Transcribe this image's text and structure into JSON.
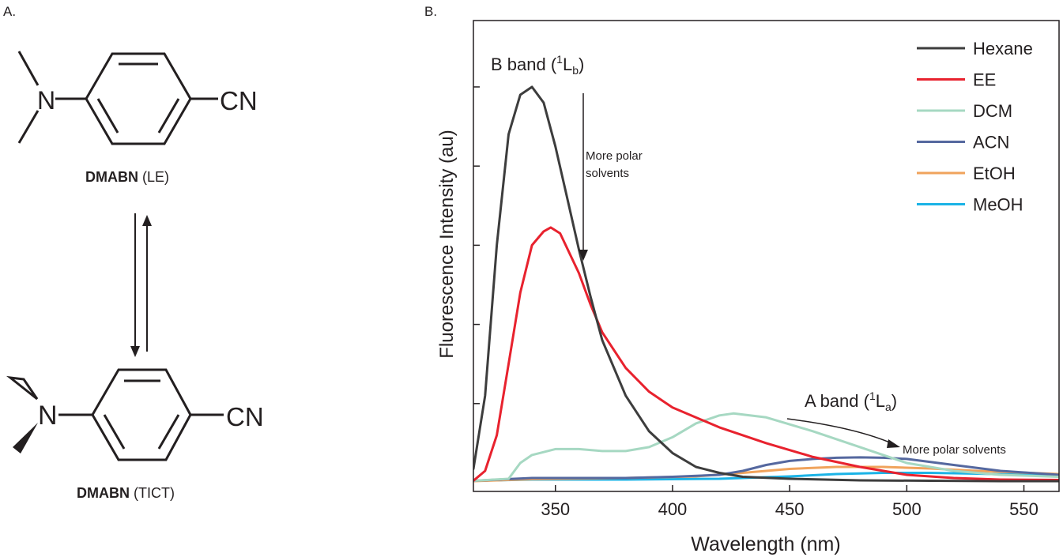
{
  "panel_a": {
    "label": "A.",
    "top_molecule": {
      "substituent": "N",
      "group": "CN",
      "name_bold": "DMABN",
      "name_suffix": " (LE)"
    },
    "bottom_molecule": {
      "substituent": "N",
      "group": "CN",
      "name_bold": "DMABN",
      "name_suffix": " (TICT)"
    }
  },
  "panel_b": {
    "label": "B.",
    "annotations": {
      "b_band_prefix": "B band (",
      "b_band_sup": "1",
      "b_band_main": "L",
      "b_band_sub": "b",
      "b_band_close": ")",
      "a_band_prefix": "A band (",
      "a_band_sup": "1",
      "a_band_main": "L",
      "a_band_sub": "a",
      "a_band_close": ")",
      "polar_line1": "More polar",
      "polar_line2": "solvents",
      "polar_a": "More polar solvents"
    }
  },
  "chart_data": {
    "type": "line",
    "title": "",
    "xlabel": "Wavelength (nm)",
    "ylabel": "Fluorescence Intensity (au)",
    "xlim": [
      315,
      565
    ],
    "ylim": [
      0,
      100
    ],
    "xticks": [
      350,
      400,
      450,
      500,
      550
    ],
    "xtick_labels": [
      "350",
      "400",
      "450",
      "500",
      "550"
    ],
    "yticks_unlabeled": [
      20,
      40,
      60,
      80,
      100
    ],
    "legend_position": "top-right",
    "series": [
      {
        "name": "Hexane",
        "color": "#3d3d3d",
        "x": [
          315,
          320,
          325,
          330,
          335,
          340,
          345,
          350,
          355,
          360,
          365,
          370,
          380,
          390,
          400,
          410,
          420,
          430,
          450,
          480,
          510,
          540,
          565
        ],
        "y": [
          3.5,
          22,
          60,
          88,
          98,
          100,
          96,
          85,
          72,
          59,
          47,
          36,
          22,
          13,
          7.5,
          4,
          2.5,
          1.5,
          1,
          0.6,
          0.5,
          0.4,
          0.4
        ]
      },
      {
        "name": "EE",
        "color": "#e8222e",
        "x": [
          315,
          320,
          325,
          330,
          335,
          340,
          345,
          348,
          352,
          360,
          365,
          370,
          380,
          390,
          400,
          420,
          440,
          460,
          480,
          500,
          520,
          540,
          565
        ],
        "y": [
          0.5,
          3,
          12,
          30,
          48,
          60,
          63.5,
          64.5,
          63,
          53,
          45,
          38,
          29,
          23,
          19,
          14,
          10,
          6.5,
          4,
          2,
          1.2,
          0.8,
          0.7
        ]
      },
      {
        "name": "DCM",
        "color": "#a6d8c2",
        "x": [
          315,
          330,
          335,
          340,
          350,
          360,
          370,
          380,
          390,
          400,
          410,
          420,
          426,
          440,
          460,
          480,
          500,
          520,
          540,
          565
        ],
        "y": [
          0.5,
          1,
          5,
          7,
          8.5,
          8.5,
          8,
          8,
          9,
          11.5,
          15,
          17,
          17.5,
          16.5,
          13,
          9,
          5,
          3,
          2,
          1.5
        ]
      },
      {
        "name": "ACN",
        "color": "#55689f",
        "x": [
          315,
          340,
          360,
          380,
          400,
          420,
          430,
          440,
          450,
          460,
          470,
          480,
          490,
          500,
          520,
          540,
          565
        ],
        "y": [
          0.5,
          1.2,
          1.2,
          1.2,
          1.5,
          2,
          3,
          4.5,
          5.5,
          6,
          6.3,
          6.4,
          6.3,
          6,
          4.5,
          3,
          2
        ]
      },
      {
        "name": "EtOH",
        "color": "#f0a35c",
        "x": [
          315,
          340,
          380,
          410,
          430,
          450,
          470,
          490,
          510,
          530,
          565
        ],
        "y": [
          0.4,
          0.9,
          1.2,
          1.6,
          2.5,
          3.5,
          4,
          4,
          3.6,
          3,
          2.2
        ]
      },
      {
        "name": "MeOH",
        "color": "#1bb3e6",
        "x": [
          315,
          340,
          380,
          420,
          450,
          470,
          490,
          510,
          530,
          565
        ],
        "y": [
          0.5,
          0.8,
          0.8,
          1,
          1.6,
          2.2,
          2.5,
          2.5,
          2.3,
          1.8
        ]
      }
    ]
  }
}
